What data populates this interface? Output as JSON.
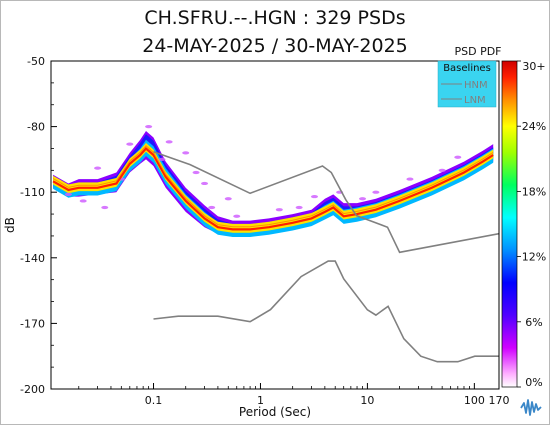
{
  "chart_data": {
    "type": "heatmap",
    "title": "CH.SFRU.--.HGN : 329 PSDs",
    "subtitle": "24-MAY-2025 / 30-MAY-2025",
    "xlabel": "Period (Sec)",
    "ylabel": "dB",
    "x_scale": "log",
    "xlim": [
      0.011,
      170
    ],
    "ylim": [
      -200,
      -50
    ],
    "xticks": [
      {
        "value": 0.1,
        "label": "0.1"
      },
      {
        "value": 1,
        "label": "1"
      },
      {
        "value": 10,
        "label": "10"
      },
      {
        "value": 100,
        "label": "100"
      },
      {
        "value": 170,
        "label": "170"
      }
    ],
    "yticks": [
      {
        "value": -50,
        "label": "-50"
      },
      {
        "value": -80,
        "label": "-80"
      },
      {
        "value": -110,
        "label": "-110"
      },
      {
        "value": -140,
        "label": "-140"
      },
      {
        "value": -170,
        "label": "-170"
      },
      {
        "value": -200,
        "label": "-200"
      }
    ],
    "colorbar": {
      "title": "PSD PDF",
      "ticks": [
        "30+",
        "24%",
        "18%",
        "12%",
        "6%",
        "0%"
      ],
      "colors": [
        "#ffffff",
        "#ff7fff",
        "#8b00ff",
        "#0000ff",
        "#00b0ff",
        "#00ffff",
        "#00ff80",
        "#aaff00",
        "#ffff00",
        "#ff8000",
        "#ff0000",
        "#c00000"
      ]
    },
    "legend": {
      "title": "Baselines",
      "entries": [
        "HNM",
        "LNM"
      ],
      "placement": "top-right"
    },
    "series": [
      {
        "name": "HNM",
        "color": "#808080",
        "x": [
          0.1,
          0.22,
          0.8,
          3.8,
          4.6,
          6.3,
          7.9,
          15.4,
          20,
          170
        ],
        "y": [
          -91.5,
          -97.4,
          -110.5,
          -98,
          -101,
          -113.5,
          -120.7,
          -126,
          -137.5,
          -129
        ]
      },
      {
        "name": "LNM",
        "color": "#808080",
        "x": [
          0.1,
          0.17,
          0.4,
          0.8,
          1.24,
          2.4,
          4.3,
          5,
          6,
          10,
          12,
          15.6,
          21.9,
          31.6,
          45,
          70,
          101,
          154,
          170
        ],
        "y": [
          -168,
          -166.7,
          -166.7,
          -169.2,
          -163.7,
          -148.6,
          -141.5,
          -141.5,
          -149.6,
          -163.8,
          -166.2,
          -162.2,
          -177,
          -185,
          -187.5,
          -187.5,
          -185,
          -185,
          -185
        ]
      },
      {
        "name": "",
        "color": "#ff0000",
        "x": [
          0.0115,
          0.016,
          0.02,
          0.03,
          0.045,
          0.06,
          0.075,
          0.085,
          0.1,
          0.13,
          0.2,
          0.3,
          0.4,
          0.55,
          0.8,
          1.2,
          2,
          3,
          4,
          4.8,
          6,
          8,
          12,
          20,
          40,
          80,
          120,
          150
        ],
        "y": [
          -105,
          -109,
          -108,
          -108,
          -106,
          -97,
          -93,
          -90,
          -93,
          -103,
          -114,
          -122,
          -126,
          -127,
          -127,
          -126,
          -124,
          -122,
          -119,
          -117,
          -121,
          -120,
          -118,
          -114,
          -108,
          -101,
          -96,
          -93
        ]
      },
      {
        "name": "",
        "color": "#00a0ff",
        "x": [
          0.0115,
          0.016,
          0.02,
          0.03,
          0.045,
          0.06,
          0.075,
          0.085,
          0.1,
          0.13,
          0.2,
          0.3,
          0.4,
          0.55,
          0.8,
          1.2,
          2,
          3,
          4,
          4.8,
          6,
          8,
          12,
          20,
          40,
          80,
          120,
          150
        ],
        "y": [
          -104,
          -108,
          -106,
          -106,
          -104,
          -95,
          -90,
          -86,
          -89,
          -99,
          -111,
          -119,
          -124,
          -125,
          -125,
          -124,
          -122,
          -120,
          -116,
          -114,
          -118,
          -117,
          -115,
          -111,
          -105,
          -98,
          -93,
          -90
        ]
      },
      {
        "name": "",
        "color": "#8b00ff",
        "x": [
          0.0115,
          0.016,
          0.02,
          0.03,
          0.045,
          0.06,
          0.075,
          0.085,
          0.1,
          0.13,
          0.2,
          0.3,
          0.4,
          0.55,
          0.8,
          1.2,
          2,
          3,
          4,
          4.8,
          6,
          8,
          12,
          20,
          40,
          80,
          120,
          150
        ],
        "y": [
          -102,
          -106,
          -104,
          -104,
          -101,
          -92,
          -86,
          -82,
          -85,
          -96,
          -108,
          -116,
          -121,
          -123,
          -123,
          -122,
          -120,
          -118,
          -113,
          -111,
          -115,
          -115,
          -113,
          -109,
          -103,
          -96,
          -91,
          -88
        ]
      },
      {
        "name": "",
        "color": "#8b00ff",
        "x": [
          0.0115,
          0.016,
          0.02,
          0.03,
          0.045,
          0.06,
          0.075,
          0.085,
          0.1,
          0.13,
          0.2,
          0.3,
          0.4,
          0.55,
          0.8,
          1.2,
          2,
          3,
          4,
          4.8,
          6,
          8,
          12,
          20,
          40,
          80,
          120,
          150
        ],
        "y": [
          -108,
          -112,
          -112,
          -111,
          -110,
          -101,
          -97,
          -95,
          -98,
          -108,
          -119,
          -126,
          -129,
          -130,
          -130,
          -129,
          -127,
          -125,
          -122,
          -120,
          -124,
          -123,
          -121,
          -117,
          -111,
          -104,
          -99,
          -96
        ]
      }
    ]
  }
}
